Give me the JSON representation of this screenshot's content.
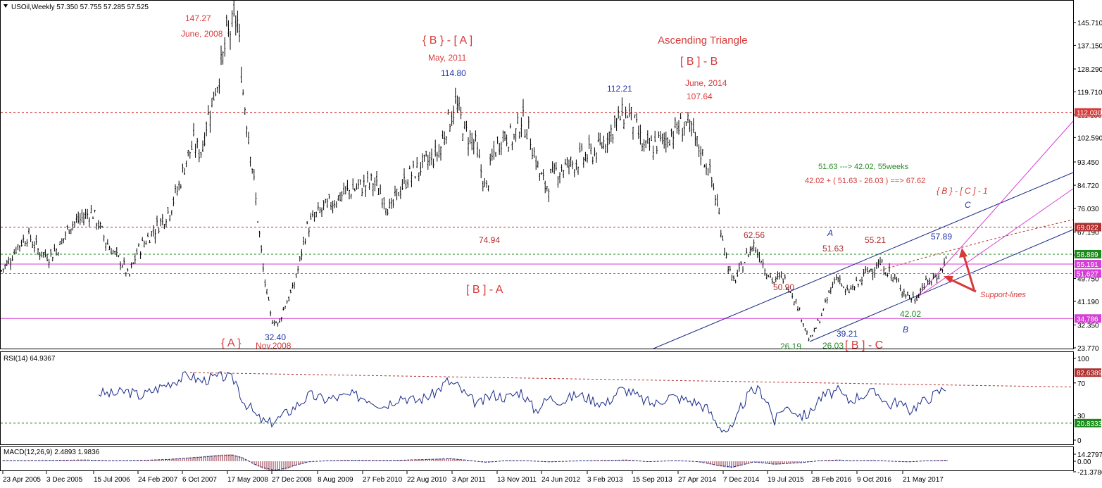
{
  "header": {
    "main": "USOil,Weekly  57.350 57.755 57.285 57.525",
    "rsi": "RSI(14) 64.9367",
    "macd": "MACD(12,26,9) 2.4893 1.9836"
  },
  "chart_data": [
    {
      "type": "candlestick",
      "symbol": "USOil",
      "timeframe": "Weekly",
      "ohlc_last": {
        "open": 57.35,
        "high": 57.755,
        "low": 57.285,
        "close": 57.525
      },
      "ylim": [
        23.77,
        151.5
      ],
      "y_ticks": [
        "145.710",
        "137.150",
        "128.290",
        "119.710",
        "111.150",
        "102.590",
        "93.450",
        "84.720",
        "76.030",
        "67.190",
        "58.615",
        "49.750",
        "41.190",
        "32.350",
        "23.770"
      ],
      "x_ticks": [
        "23 Apr 2005",
        "3 Dec 2005",
        "15 Jul 2006",
        "24 Feb 2007",
        "6 Oct 2007",
        "17 May 2008",
        "27 Dec 2008",
        "8 Aug 2009",
        "27 Feb 2010",
        "22 Aug 2010",
        "3 Apr 2011",
        "13 Nov 2011",
        "24 Jun 2012",
        "3 Feb 2013",
        "15 Sep 2013",
        "27 Apr 2014",
        "7 Dec 2014",
        "19 Jul 2015",
        "28 Feb 2016",
        "9 Oct 2016",
        "21 May 2017"
      ],
      "path_points": [
        [
          0,
          52
        ],
        [
          12,
          56
        ],
        [
          25,
          62
        ],
        [
          40,
          66
        ],
        [
          55,
          60
        ],
        [
          70,
          58
        ],
        [
          85,
          62
        ],
        [
          100,
          70
        ],
        [
          115,
          72
        ],
        [
          130,
          75
        ],
        [
          140,
          70
        ],
        [
          150,
          64
        ],
        [
          165,
          58
        ],
        [
          175,
          55
        ],
        [
          183,
          50
        ],
        [
          195,
          60
        ],
        [
          210,
          65
        ],
        [
          225,
          70
        ],
        [
          240,
          75
        ],
        [
          255,
          85
        ],
        [
          265,
          95
        ],
        [
          275,
          100
        ],
        [
          285,
          97
        ],
        [
          295,
          110
        ],
        [
          305,
          120
        ],
        [
          315,
          130
        ],
        [
          322,
          140
        ],
        [
          330,
          144
        ],
        [
          337,
          147.27
        ],
        [
          345,
          120
        ],
        [
          355,
          100
        ],
        [
          365,
          75
        ],
        [
          375,
          50
        ],
        [
          385,
          35
        ],
        [
          395,
          32.4
        ],
        [
          405,
          40
        ],
        [
          415,
          45
        ],
        [
          425,
          55
        ],
        [
          435,
          68
        ],
        [
          445,
          72
        ],
        [
          455,
          75
        ],
        [
          470,
          78
        ],
        [
          490,
          82
        ],
        [
          510,
          84
        ],
        [
          530,
          86
        ],
        [
          545,
          80
        ],
        [
          555,
          74.94
        ],
        [
          565,
          82
        ],
        [
          580,
          88
        ],
        [
          600,
          92
        ],
        [
          615,
          95
        ],
        [
          625,
          98
        ],
        [
          635,
          108
        ],
        [
          648,
          114.8
        ],
        [
          660,
          105
        ],
        [
          675,
          100
        ],
        [
          690,
          82
        ],
        [
          700,
          96
        ],
        [
          715,
          104
        ],
        [
          730,
          102
        ],
        [
          740,
          110
        ],
        [
          752,
          104
        ],
        [
          765,
          90
        ],
        [
          775,
          84
        ],
        [
          790,
          90
        ],
        [
          805,
          92
        ],
        [
          820,
          94
        ],
        [
          835,
          96
        ],
        [
          850,
          98
        ],
        [
          865,
          104
        ],
        [
          880,
          110
        ],
        [
          893,
          112.21
        ],
        [
          905,
          105
        ],
        [
          915,
          98
        ],
        [
          930,
          100
        ],
        [
          945,
          102
        ],
        [
          960,
          106
        ],
        [
          975,
          107.64
        ],
        [
          990,
          100
        ],
        [
          1005,
          92
        ],
        [
          1015,
          82
        ],
        [
          1022,
          72
        ],
        [
          1030,
          60
        ],
        [
          1040,
          48
        ],
        [
          1050,
          52
        ],
        [
          1060,
          58
        ],
        [
          1070,
          62.56
        ],
        [
          1080,
          58
        ],
        [
          1090,
          52
        ],
        [
          1100,
          48
        ],
        [
          1110,
          50.9
        ],
        [
          1122,
          46
        ],
        [
          1132,
          40
        ],
        [
          1140,
          34
        ],
        [
          1150,
          26.19
        ],
        [
          1160,
          32
        ],
        [
          1170,
          38
        ],
        [
          1180,
          46
        ],
        [
          1190,
          51.63
        ],
        [
          1200,
          44
        ],
        [
          1210,
          46
        ],
        [
          1220,
          48
        ],
        [
          1230,
          52
        ],
        [
          1240,
          54
        ],
        [
          1250,
          55.21
        ],
        [
          1262,
          52
        ],
        [
          1275,
          48
        ],
        [
          1290,
          43
        ],
        [
          1300,
          42.02
        ],
        [
          1310,
          47
        ],
        [
          1322,
          49
        ],
        [
          1335,
          52
        ],
        [
          1345,
          57.89
        ]
      ],
      "rsi": {
        "name": "RSI(14)",
        "value": 64.9367,
        "ylim": [
          0,
          100
        ],
        "y_ticks": [
          "100",
          "70",
          "30",
          "0"
        ],
        "levels": [
          "82.6389",
          "20.8333"
        ],
        "path": [
          [
            140,
            58
          ],
          [
            160,
            56
          ],
          [
            180,
            60
          ],
          [
            200,
            54
          ],
          [
            220,
            62
          ],
          [
            240,
            70
          ],
          [
            255,
            75
          ],
          [
            268,
            80
          ],
          [
            285,
            72
          ],
          [
            300,
            76
          ],
          [
            320,
            78
          ],
          [
            335,
            72
          ],
          [
            345,
            48
          ],
          [
            355,
            40
          ],
          [
            365,
            28
          ],
          [
            380,
            20
          ],
          [
            395,
            26
          ],
          [
            410,
            35
          ],
          [
            425,
            45
          ],
          [
            440,
            55
          ],
          [
            460,
            50
          ],
          [
            480,
            52
          ],
          [
            500,
            55
          ],
          [
            520,
            52
          ],
          [
            545,
            42
          ],
          [
            570,
            54
          ],
          [
            590,
            48
          ],
          [
            615,
            56
          ],
          [
            635,
            72
          ],
          [
            650,
            66
          ],
          [
            665,
            52
          ],
          [
            680,
            44
          ],
          [
            700,
            56
          ],
          [
            720,
            52
          ],
          [
            740,
            60
          ],
          [
            760,
            36
          ],
          [
            780,
            52
          ],
          [
            800,
            48
          ],
          [
            820,
            56
          ],
          [
            840,
            50
          ],
          [
            860,
            44
          ],
          [
            880,
            62
          ],
          [
            895,
            60
          ],
          [
            910,
            50
          ],
          [
            930,
            44
          ],
          [
            950,
            54
          ],
          [
            970,
            50
          ],
          [
            990,
            46
          ],
          [
            1005,
            38
          ],
          [
            1018,
            20
          ],
          [
            1030,
            12
          ],
          [
            1042,
            14
          ],
          [
            1052,
            40
          ],
          [
            1065,
            58
          ],
          [
            1078,
            62
          ],
          [
            1090,
            48
          ],
          [
            1100,
            22
          ],
          [
            1112,
            40
          ],
          [
            1125,
            38
          ],
          [
            1138,
            30
          ],
          [
            1150,
            32
          ],
          [
            1162,
            50
          ],
          [
            1175,
            56
          ],
          [
            1190,
            60
          ],
          [
            1205,
            48
          ],
          [
            1220,
            54
          ],
          [
            1235,
            58
          ],
          [
            1250,
            56
          ],
          [
            1262,
            42
          ],
          [
            1275,
            48
          ],
          [
            1290,
            36
          ],
          [
            1305,
            44
          ],
          [
            1320,
            52
          ],
          [
            1335,
            60
          ],
          [
            1343,
            64.9
          ]
        ]
      },
      "macd": {
        "name": "MACD(12,26,9)",
        "main": 2.4893,
        "signal": 1.9836,
        "y_ticks": [
          "14.2797",
          "0.00",
          "-21.3786"
        ],
        "hist": [
          [
            40,
            1.5
          ],
          [
            80,
            2.2
          ],
          [
            120,
            3
          ],
          [
            160,
            1.2
          ],
          [
            200,
            2
          ],
          [
            240,
            4.5
          ],
          [
            280,
            9
          ],
          [
            310,
            13
          ],
          [
            330,
            14.2
          ],
          [
            345,
            8
          ],
          [
            360,
            -6
          ],
          [
            375,
            -16
          ],
          [
            390,
            -21
          ],
          [
            405,
            -17
          ],
          [
            420,
            -9
          ],
          [
            440,
            -1
          ],
          [
            470,
            1.5
          ],
          [
            500,
            2.5
          ],
          [
            540,
            1.8
          ],
          [
            570,
            2.5
          ],
          [
            610,
            4.5
          ],
          [
            640,
            6
          ],
          [
            660,
            3
          ],
          [
            690,
            -2.5
          ],
          [
            720,
            1.5
          ],
          [
            750,
            1
          ],
          [
            780,
            -1.5
          ],
          [
            820,
            0.8
          ],
          [
            860,
            2
          ],
          [
            890,
            3
          ],
          [
            920,
            -1
          ],
          [
            960,
            1.5
          ],
          [
            990,
            -0.8
          ],
          [
            1005,
            -5
          ],
          [
            1020,
            -10
          ],
          [
            1040,
            -14
          ],
          [
            1055,
            -8
          ],
          [
            1070,
            -2
          ],
          [
            1085,
            -4
          ],
          [
            1100,
            -7
          ],
          [
            1120,
            -5
          ],
          [
            1140,
            -3
          ],
          [
            1165,
            1.5
          ],
          [
            1190,
            3
          ],
          [
            1210,
            1
          ],
          [
            1240,
            2
          ],
          [
            1260,
            0.5
          ],
          [
            1290,
            -1.5
          ],
          [
            1310,
            0.5
          ],
          [
            1330,
            1.8
          ],
          [
            1345,
            2.5
          ]
        ]
      }
    }
  ],
  "levels": [
    {
      "value": "112.030",
      "color": "#d83a3a"
    },
    {
      "value": "69.022",
      "color": "#b03030"
    },
    {
      "value": "58.889",
      "color": "#1a8a1a"
    },
    {
      "value": "55.191",
      "color": "#d53fd5"
    },
    {
      "value": "51.627",
      "color": "#d53fd5"
    },
    {
      "value": "34.786",
      "color": "#d53fd5"
    }
  ],
  "annotations": {
    "p147": "147.27",
    "jun2008": "June, 2008",
    "bA_top": "{ B } - [ A ]",
    "may2011": "May, 2011",
    "p114": "114.80",
    "asc": "Ascending Triangle",
    "bB": "[ B ] - B",
    "jun2014": "June, 2014",
    "p112": "112.21",
    "p107": "107.64",
    "calc1": "51.63 ---> 42.02,  55weeks",
    "calc2": "42.02 + ( 51.63 - 26.03 ) ==> 67.62",
    "bC1": "{ B } - [ C ] - 1",
    "c_lbl": "C",
    "p74": "74.94",
    "p62": "62.56",
    "a_lbl": "A",
    "p5163": "51.63",
    "p5521": "55.21",
    "p5789": "57.89",
    "p5090": "50.90",
    "bA": "[ B ] - A",
    "support": "Support-lines",
    "p3240": "32.40",
    "A_big": "{ A }",
    "nov2008": "Nov.2008",
    "p3921": "39.21",
    "p4202": "42.02",
    "b_lbl": "B",
    "p2619": "26.19",
    "p2603": "26.03",
    "bCb": "[ B ] - C"
  },
  "colors": {
    "candle": "#000000",
    "axis": "#000000",
    "red": "#d83a3a",
    "blue": "#2233aa",
    "green": "#2a8a2a",
    "magenta": "#d53fd5"
  }
}
